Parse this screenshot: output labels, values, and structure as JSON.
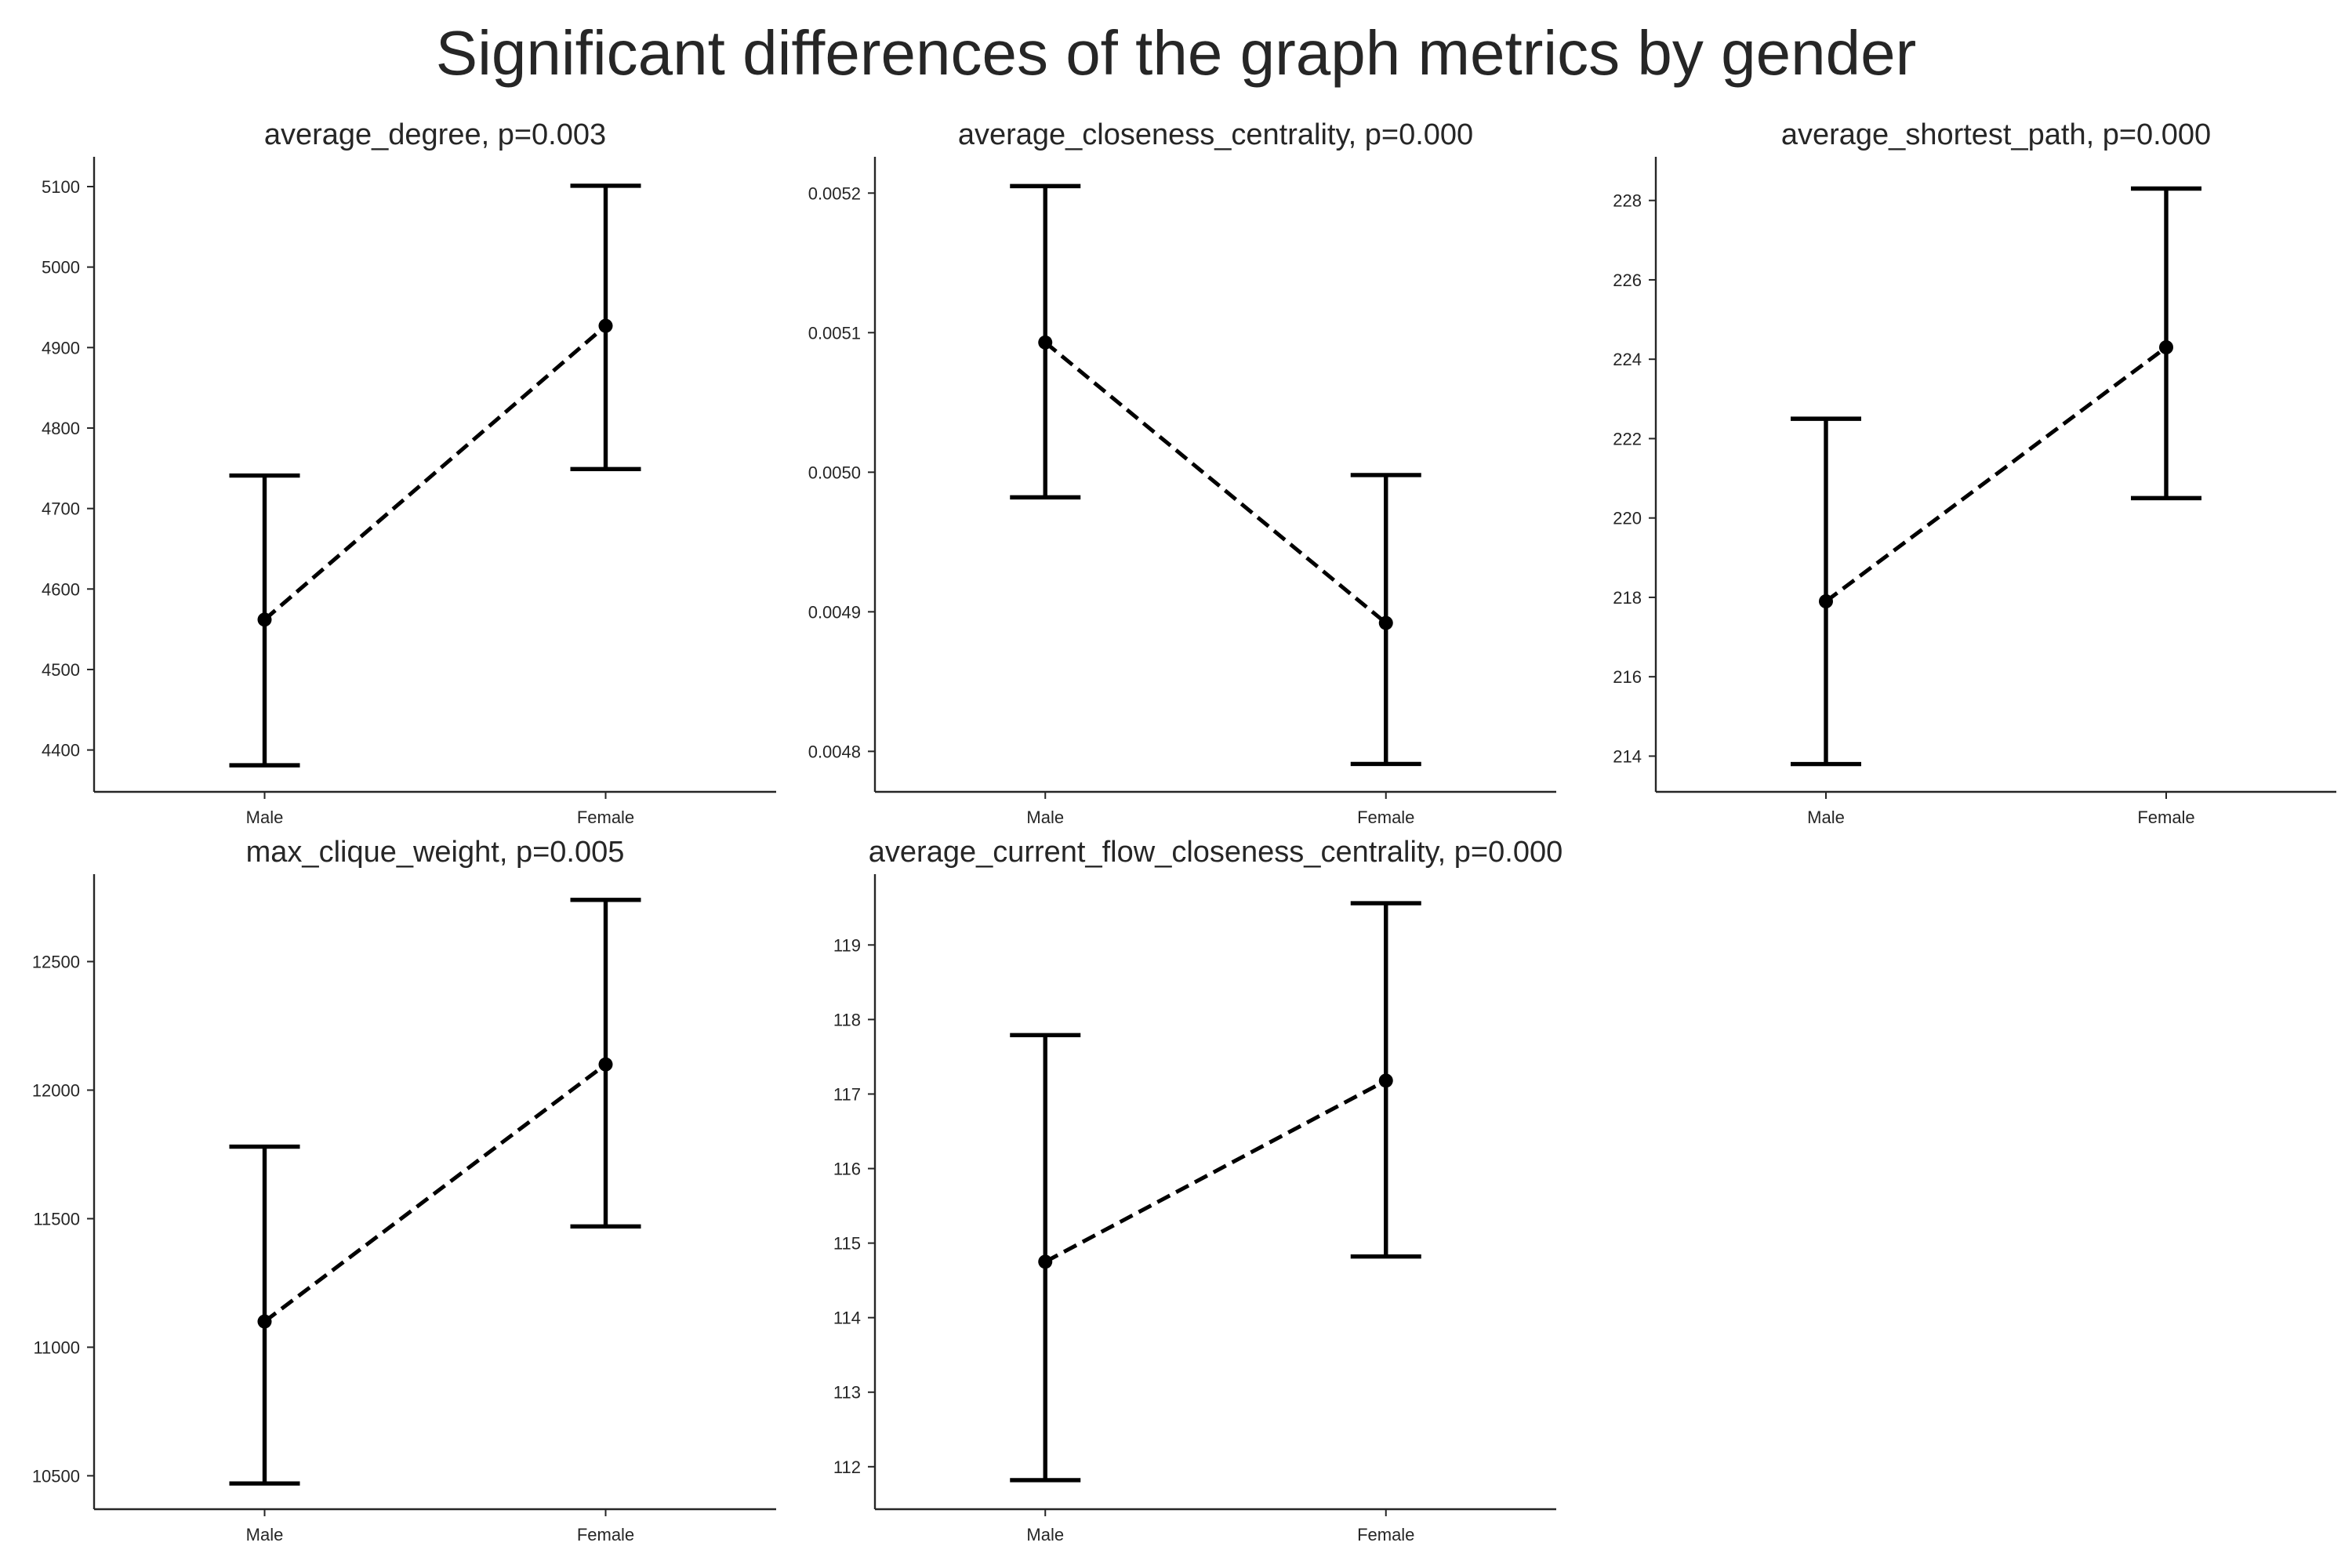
{
  "figure": {
    "title": "Significant differences of the graph metrics by gender"
  },
  "chart_data": [
    {
      "type": "errorbar",
      "title": "average_degree, p=0.003",
      "categories": [
        "Male",
        "Female"
      ],
      "values": [
        4562,
        4927
      ],
      "ci_low": [
        4381,
        4749
      ],
      "ci_high": [
        4741,
        5101
      ],
      "ylim": [
        4348,
        5137
      ],
      "yticks": [
        4400,
        4500,
        4600,
        4700,
        4800,
        4900,
        5000,
        5100
      ],
      "ytick_labels": [
        "4400",
        "4500",
        "4600",
        "4700",
        "4800",
        "4900",
        "5000",
        "5100"
      ]
    },
    {
      "type": "errorbar",
      "title": "average_closeness_centrality, p=0.000",
      "categories": [
        "Male",
        "Female"
      ],
      "values": [
        0.005093,
        0.004892
      ],
      "ci_low": [
        0.004982,
        0.004791
      ],
      "ci_high": [
        0.005205,
        0.004998
      ],
      "ylim": [
        0.004771,
        0.005226
      ],
      "yticks": [
        0.0048,
        0.0049,
        0.005,
        0.0051,
        0.0052
      ],
      "ytick_labels": [
        "0.0048",
        "0.0049",
        "0.0050",
        "0.0051",
        "0.0052"
      ]
    },
    {
      "type": "errorbar",
      "title": "average_shortest_path, p=0.000",
      "categories": [
        "Male",
        "Female"
      ],
      "values": [
        217.9,
        224.3
      ],
      "ci_low": [
        213.8,
        220.5
      ],
      "ci_high": [
        222.5,
        228.3
      ],
      "ylim": [
        213.1,
        229.1
      ],
      "yticks": [
        214,
        216,
        218,
        220,
        222,
        224,
        226,
        228
      ],
      "ytick_labels": [
        "214",
        "216",
        "218",
        "220",
        "222",
        "224",
        "226",
        "228"
      ]
    },
    {
      "type": "errorbar",
      "title": "max_clique_weight, p=0.005",
      "categories": [
        "Male",
        "Female"
      ],
      "values": [
        11100,
        12100
      ],
      "ci_low": [
        10470,
        11470
      ],
      "ci_high": [
        11780,
        12740
      ],
      "ylim": [
        10370,
        12840
      ],
      "yticks": [
        10500,
        11000,
        11500,
        12000,
        12500
      ],
      "ytick_labels": [
        "10500",
        "11000",
        "11500",
        "12000",
        "12500"
      ]
    },
    {
      "type": "errorbar",
      "title": "average_current_flow_closeness_centrality, p=0.000",
      "categories": [
        "Male",
        "Female"
      ],
      "values": [
        114.75,
        117.18
      ],
      "ci_low": [
        111.82,
        114.82
      ],
      "ci_high": [
        117.79,
        119.56
      ],
      "ylim": [
        111.43,
        119.95
      ],
      "yticks": [
        112,
        113,
        114,
        115,
        116,
        117,
        118,
        119
      ],
      "ytick_labels": [
        "112",
        "113",
        "114",
        "115",
        "116",
        "117",
        "118",
        "119"
      ]
    }
  ]
}
